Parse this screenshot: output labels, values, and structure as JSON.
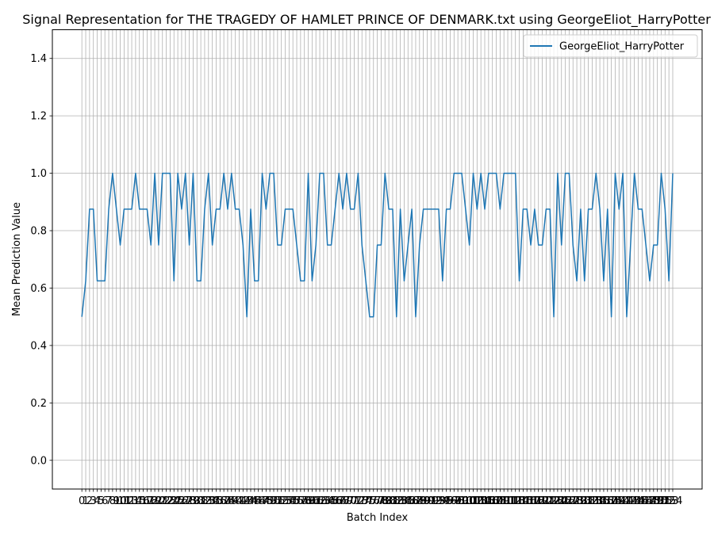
{
  "chart_data": {
    "type": "line",
    "title": "Signal Representation for THE TRAGEDY OF HAMLET PRINCE OF DENMARK.txt using GeorgeEliot_HarryPotter",
    "xlabel": "Batch Index",
    "ylabel": "Mean Prediction Value",
    "ylim": [
      -0.1,
      1.5
    ],
    "yticks": [
      "0.0",
      "0.2",
      "0.4",
      "0.6",
      "0.8",
      "1.0",
      "1.2",
      "1.4"
    ],
    "grid": true,
    "legend": "top-right",
    "color": "#1f77b4",
    "series": [
      {
        "name": "GeorgeEliot_HarryPotter",
        "values": [
          0.5,
          0.625,
          0.875,
          0.875,
          0.625,
          0.625,
          0.625,
          0.875,
          1.0,
          0.875,
          0.75,
          0.875,
          0.875,
          0.875,
          1.0,
          0.875,
          0.875,
          0.875,
          0.75,
          1.0,
          0.75,
          1.0,
          1.0,
          1.0,
          0.625,
          1.0,
          0.875,
          1.0,
          0.75,
          1.0,
          0.625,
          0.625,
          0.875,
          1.0,
          0.75,
          0.875,
          0.875,
          1.0,
          0.875,
          1.0,
          0.875,
          0.875,
          0.75,
          0.5,
          0.875,
          0.625,
          0.625,
          1.0,
          0.875,
          1.0,
          1.0,
          0.75,
          0.75,
          0.875,
          0.875,
          0.875,
          0.75,
          0.625,
          0.625,
          1.0,
          0.625,
          0.75,
          1.0,
          1.0,
          0.75,
          0.75,
          0.875,
          1.0,
          0.875,
          1.0,
          0.875,
          0.875,
          1.0,
          0.75,
          0.625,
          0.5,
          0.5,
          0.75,
          0.75,
          1.0,
          0.875,
          0.875,
          0.5,
          0.875,
          0.625,
          0.75,
          0.875,
          0.5,
          0.75,
          0.875,
          0.875,
          0.875,
          0.875,
          0.875,
          0.625,
          0.875,
          0.875,
          1.0,
          1.0,
          1.0,
          0.875,
          0.75,
          1.0,
          0.875,
          1.0,
          0.875,
          1.0,
          1.0,
          1.0,
          0.875,
          1.0,
          1.0,
          1.0,
          1.0,
          0.625,
          0.875,
          0.875,
          0.75,
          0.875,
          0.75,
          0.75,
          0.875,
          0.875,
          0.5,
          1.0,
          0.75,
          1.0,
          1.0,
          0.75,
          0.625,
          0.875,
          0.625,
          0.875,
          0.875,
          1.0,
          0.875,
          0.625,
          0.875,
          0.5,
          1.0,
          0.875,
          1.0,
          0.5,
          0.75,
          1.0,
          0.875,
          0.875,
          0.75,
          0.625,
          0.75,
          0.75,
          1.0,
          0.875,
          0.625,
          1.0
        ]
      }
    ]
  }
}
